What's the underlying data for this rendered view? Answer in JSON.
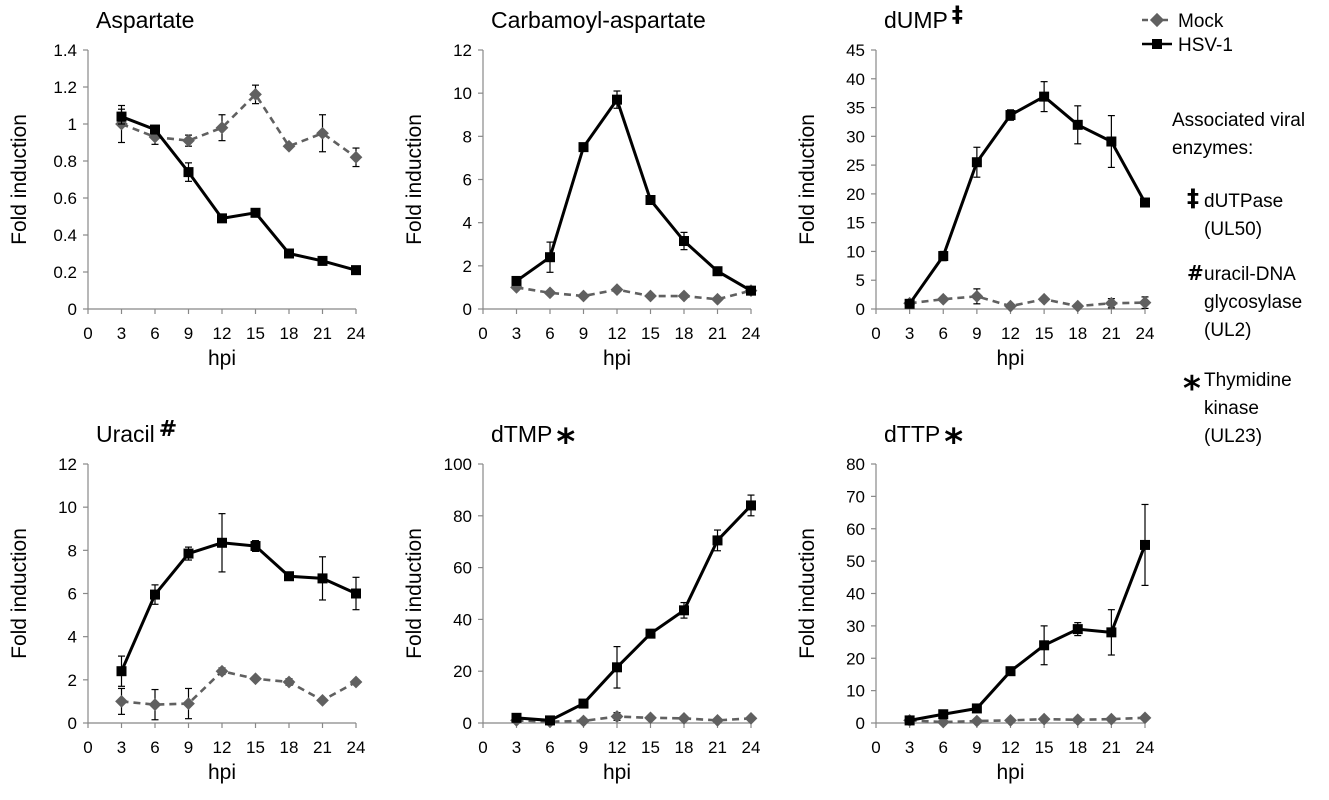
{
  "legend": {
    "mock_label": "Mock",
    "hsv_label": "HSV-1"
  },
  "side_note": {
    "heading_lines": [
      "Associated viral",
      "enzymes:"
    ],
    "entries": [
      {
        "symbol": "‡",
        "lines": [
          "dUTPase",
          "(UL50)"
        ]
      },
      {
        "symbol": "#",
        "lines": [
          "uracil-DNA",
          "glycosylase",
          "(UL2)"
        ]
      },
      {
        "symbol": "*",
        "lines": [
          "Thymidine",
          "kinase",
          "(UL23)"
        ]
      }
    ]
  },
  "colors": {
    "mock": "#606060",
    "hsv": "#000000"
  },
  "chart_data": [
    {
      "type": "line",
      "title": "Aspartate",
      "title_marker": "",
      "xlabel": "hpi",
      "ylabel": "Fold induction",
      "x": [
        3,
        6,
        9,
        12,
        15,
        18,
        21,
        24
      ],
      "x_ticks": [
        "0",
        "3",
        "6",
        "9",
        "12",
        "15",
        "18",
        "21",
        "24"
      ],
      "xlim": [
        0,
        24
      ],
      "ylim": [
        0,
        1.4
      ],
      "y_ticks": [
        "0",
        "0.2",
        "0.4",
        "0.6",
        "0.8",
        "1",
        "1.2",
        "1.4"
      ],
      "series": [
        {
          "name": "Mock",
          "values": [
            1.0,
            0.93,
            0.91,
            0.98,
            1.16,
            0.88,
            0.95,
            0.82
          ],
          "errors": [
            0.1,
            0.04,
            0.03,
            0.07,
            0.05,
            0.0,
            0.1,
            0.05
          ]
        },
        {
          "name": "HSV-1",
          "values": [
            1.04,
            0.97,
            0.74,
            0.49,
            0.52,
            0.3,
            0.26,
            0.21
          ],
          "errors": [
            0.04,
            0.02,
            0.05,
            0.0,
            0.0,
            0.0,
            0.0,
            0.0
          ]
        }
      ]
    },
    {
      "type": "line",
      "title": "Carbamoyl-aspartate",
      "title_marker": "",
      "xlabel": "hpi",
      "ylabel": "Fold induction",
      "x": [
        3,
        6,
        9,
        12,
        15,
        18,
        21,
        24
      ],
      "x_ticks": [
        "0",
        "3",
        "6",
        "9",
        "12",
        "15",
        "18",
        "21",
        "24"
      ],
      "xlim": [
        0,
        24
      ],
      "ylim": [
        0,
        12
      ],
      "y_ticks": [
        "0",
        "2",
        "4",
        "6",
        "8",
        "10",
        "12"
      ],
      "series": [
        {
          "name": "Mock",
          "values": [
            1.0,
            0.75,
            0.6,
            0.9,
            0.6,
            0.6,
            0.45,
            0.85
          ],
          "errors": [
            0.0,
            0.0,
            0.0,
            0.0,
            0.0,
            0.0,
            0.0,
            0.0
          ]
        },
        {
          "name": "HSV-1",
          "values": [
            1.3,
            2.4,
            7.5,
            9.7,
            5.05,
            3.15,
            1.75,
            0.85
          ],
          "errors": [
            0.0,
            0.7,
            0.0,
            0.4,
            0.0,
            0.4,
            0.0,
            0.0
          ]
        }
      ]
    },
    {
      "type": "line",
      "title": "dUMP",
      "title_marker": "‡",
      "xlabel": "hpi",
      "ylabel": "Fold induction",
      "x": [
        3,
        6,
        9,
        12,
        15,
        18,
        21,
        24
      ],
      "x_ticks": [
        "0",
        "3",
        "6",
        "9",
        "12",
        "15",
        "18",
        "21",
        "24"
      ],
      "xlim": [
        0,
        24
      ],
      "ylim": [
        0,
        45
      ],
      "y_ticks": [
        "0",
        "5",
        "10",
        "15",
        "20",
        "25",
        "30",
        "35",
        "40",
        "45"
      ],
      "series": [
        {
          "name": "Mock",
          "values": [
            1.0,
            1.7,
            2.2,
            0.5,
            1.7,
            0.5,
            1.0,
            1.1
          ],
          "errors": [
            0.0,
            0.0,
            1.3,
            0.0,
            0.0,
            0.0,
            0.8,
            1.0
          ]
        },
        {
          "name": "HSV-1",
          "values": [
            0.9,
            9.2,
            25.5,
            33.7,
            36.9,
            32.0,
            29.1,
            18.5
          ],
          "errors": [
            0.0,
            0.8,
            2.6,
            0.9,
            2.6,
            3.3,
            4.5,
            0.0
          ]
        }
      ]
    },
    {
      "type": "line",
      "title": "Uracil",
      "title_marker": "#",
      "xlabel": "hpi",
      "ylabel": "Fold induction",
      "x": [
        3,
        6,
        9,
        12,
        15,
        18,
        21,
        24
      ],
      "x_ticks": [
        "0",
        "3",
        "6",
        "9",
        "12",
        "15",
        "18",
        "21",
        "24"
      ],
      "xlim": [
        0,
        24
      ],
      "ylim": [
        0,
        12
      ],
      "y_ticks": [
        "0",
        "2",
        "4",
        "6",
        "8",
        "10",
        "12"
      ],
      "series": [
        {
          "name": "Mock",
          "values": [
            1.0,
            0.85,
            0.9,
            2.4,
            2.05,
            1.9,
            1.05,
            1.9
          ],
          "errors": [
            0.6,
            0.7,
            0.7,
            0.15,
            0.0,
            0.15,
            0.0,
            0.0
          ]
        },
        {
          "name": "HSV-1",
          "values": [
            2.4,
            5.95,
            7.85,
            8.35,
            8.2,
            6.8,
            6.7,
            6.0
          ],
          "errors": [
            0.7,
            0.45,
            0.3,
            1.35,
            0.25,
            0.0,
            1.0,
            0.75
          ]
        }
      ]
    },
    {
      "type": "line",
      "title": "dTMP",
      "title_marker": "*",
      "xlabel": "hpi",
      "ylabel": "Fold induction",
      "x": [
        3,
        6,
        9,
        12,
        15,
        18,
        21,
        24
      ],
      "x_ticks": [
        "0",
        "3",
        "6",
        "9",
        "12",
        "15",
        "18",
        "21",
        "24"
      ],
      "xlim": [
        0,
        24
      ],
      "ylim": [
        0,
        100
      ],
      "y_ticks": [
        "0",
        "20",
        "40",
        "60",
        "80",
        "100"
      ],
      "series": [
        {
          "name": "Mock",
          "values": [
            1.0,
            0.5,
            0.8,
            2.5,
            2.0,
            1.8,
            1.0,
            1.8
          ],
          "errors": [
            0.0,
            0.0,
            0.0,
            1.5,
            0.0,
            0.0,
            0.0,
            0.0
          ]
        },
        {
          "name": "HSV-1",
          "values": [
            2.0,
            1.0,
            7.5,
            21.5,
            34.5,
            43.5,
            70.5,
            84.0
          ],
          "errors": [
            0.0,
            0.0,
            0.0,
            8.0,
            0.0,
            3.0,
            4.0,
            4.0
          ]
        }
      ]
    },
    {
      "type": "line",
      "title": "dTTP",
      "title_marker": "*",
      "xlabel": "hpi",
      "ylabel": "Fold induction",
      "x": [
        3,
        6,
        9,
        12,
        15,
        18,
        21,
        24
      ],
      "x_ticks": [
        "0",
        "3",
        "6",
        "9",
        "12",
        "15",
        "18",
        "21",
        "24"
      ],
      "xlim": [
        0,
        24
      ],
      "ylim": [
        0,
        80
      ],
      "y_ticks": [
        "0",
        "10",
        "20",
        "30",
        "40",
        "50",
        "60",
        "70",
        "80"
      ],
      "series": [
        {
          "name": "Mock",
          "values": [
            0.8,
            0.3,
            0.6,
            0.8,
            1.2,
            1.0,
            1.2,
            1.6
          ],
          "errors": [
            0.0,
            0.0,
            0.0,
            0.0,
            0.0,
            0.0,
            0.0,
            0.0
          ]
        },
        {
          "name": "HSV-1",
          "values": [
            0.8,
            2.7,
            4.5,
            16.0,
            24.0,
            29.0,
            28.0,
            55.0
          ],
          "errors": [
            0.0,
            0.0,
            0.0,
            0.0,
            6.0,
            2.0,
            7.0,
            12.5
          ]
        }
      ]
    }
  ]
}
